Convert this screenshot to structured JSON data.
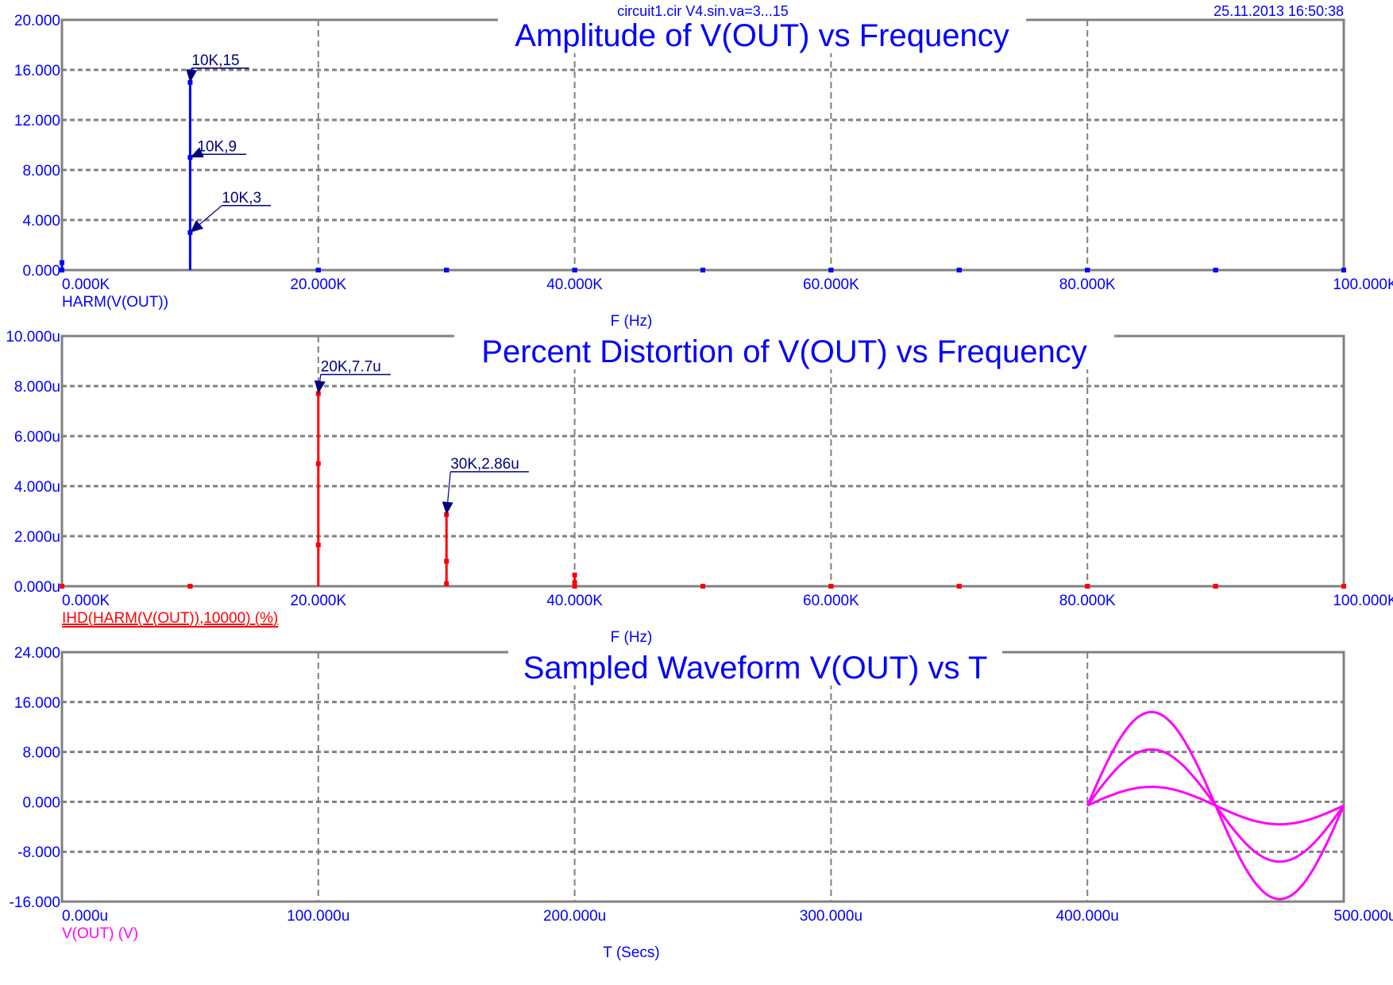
{
  "header": {
    "caption": "circuit1.cir V4.sin.va=3...15",
    "timestamp": "25.11.2013 16:50:38"
  },
  "colors": {
    "axis_text": "#0000ff",
    "grid": "#808080",
    "annotation": "#000080"
  },
  "chart_data": [
    {
      "type": "bar",
      "title": "Amplitude of V(OUT) vs Frequency",
      "xlabel": "F (Hz)",
      "trace_label": "HARM(V(OUT))",
      "trace_color": "#0000ff",
      "trace_underlined": false,
      "xlim": [
        0,
        100000
      ],
      "ylim": [
        0,
        20
      ],
      "x_ticks": [
        "0.000K",
        "20.000K",
        "40.000K",
        "60.000K",
        "80.000K",
        "100.000K"
      ],
      "y_ticks": [
        "0.000",
        "4.000",
        "8.000",
        "12.000",
        "16.000",
        "20.000"
      ],
      "grid": true,
      "x": [
        0,
        10000,
        20000,
        30000,
        40000,
        50000,
        60000,
        70000,
        80000,
        90000,
        100000
      ],
      "series": [
        {
          "values": [
            0,
            3,
            0,
            0,
            0,
            0,
            0,
            0,
            0,
            0,
            0
          ]
        },
        {
          "values": [
            0,
            9,
            0,
            0,
            0,
            0,
            0,
            0,
            0,
            0,
            0
          ]
        },
        {
          "values": [
            0.6,
            15,
            0,
            0,
            0,
            0,
            0,
            0,
            0,
            0,
            0
          ]
        }
      ],
      "annotations": [
        {
          "x": 10000,
          "y": 15,
          "label": "10K,15"
        },
        {
          "x": 10000,
          "y": 9,
          "label": "10K,9"
        },
        {
          "x": 10000,
          "y": 3,
          "label": "10K,3"
        }
      ]
    },
    {
      "type": "bar",
      "title": "Percent Distortion of V(OUT) vs Frequency",
      "xlabel": "F (Hz)",
      "trace_label": "IHD(HARM(V(OUT)),10000) (%)",
      "trace_color": "#ff0000",
      "trace_underlined": true,
      "xlim": [
        0,
        100000
      ],
      "ylim": [
        0,
        1e-05
      ],
      "x_ticks": [
        "0.000K",
        "20.000K",
        "40.000K",
        "60.000K",
        "80.000K",
        "100.000K"
      ],
      "y_ticks": [
        "0.000u",
        "2.000u",
        "4.000u",
        "6.000u",
        "8.000u",
        "10.000u"
      ],
      "grid": true,
      "x": [
        0,
        10000,
        20000,
        30000,
        40000,
        50000,
        60000,
        70000,
        80000,
        90000,
        100000
      ],
      "series": [
        {
          "values": [
            0,
            0,
            1.65e-06,
            1e-07,
            0,
            0,
            0,
            0,
            0,
            0,
            0
          ]
        },
        {
          "values": [
            0,
            0,
            4.9e-06,
            1e-06,
            1.5e-07,
            0,
            0,
            0,
            0,
            0,
            0
          ]
        },
        {
          "values": [
            0,
            0,
            7.7e-06,
            2.86e-06,
            4.5e-07,
            0,
            0,
            0,
            0,
            0,
            0
          ]
        }
      ],
      "annotations": [
        {
          "x": 20000,
          "y": 7.7e-06,
          "label": "20K,7.7u"
        },
        {
          "x": 30000,
          "y": 2.86e-06,
          "label": "30K,2.86u"
        }
      ]
    },
    {
      "type": "line",
      "title": "Sampled Waveform  V(OUT) vs T",
      "xlabel": "T (Secs)",
      "trace_label": "V(OUT) (V)",
      "trace_color": "#ff00ff",
      "trace_underlined": false,
      "xlim": [
        0,
        0.0005
      ],
      "ylim": [
        -16,
        24
      ],
      "x_ticks": [
        "0.000u",
        "100.000u",
        "200.000u",
        "300.000u",
        "400.000u",
        "500.000u"
      ],
      "y_ticks": [
        "-16.000",
        "-8.000",
        "0.000",
        "8.000",
        "16.000",
        "24.000"
      ],
      "grid": true,
      "waveform": {
        "t_start": 0.0004,
        "t_end": 0.0005,
        "period": 0.0001,
        "offset": -0.6
      },
      "series": [
        {
          "amplitude": 3
        },
        {
          "amplitude": 9
        },
        {
          "amplitude": 15
        }
      ],
      "annotations": []
    }
  ]
}
